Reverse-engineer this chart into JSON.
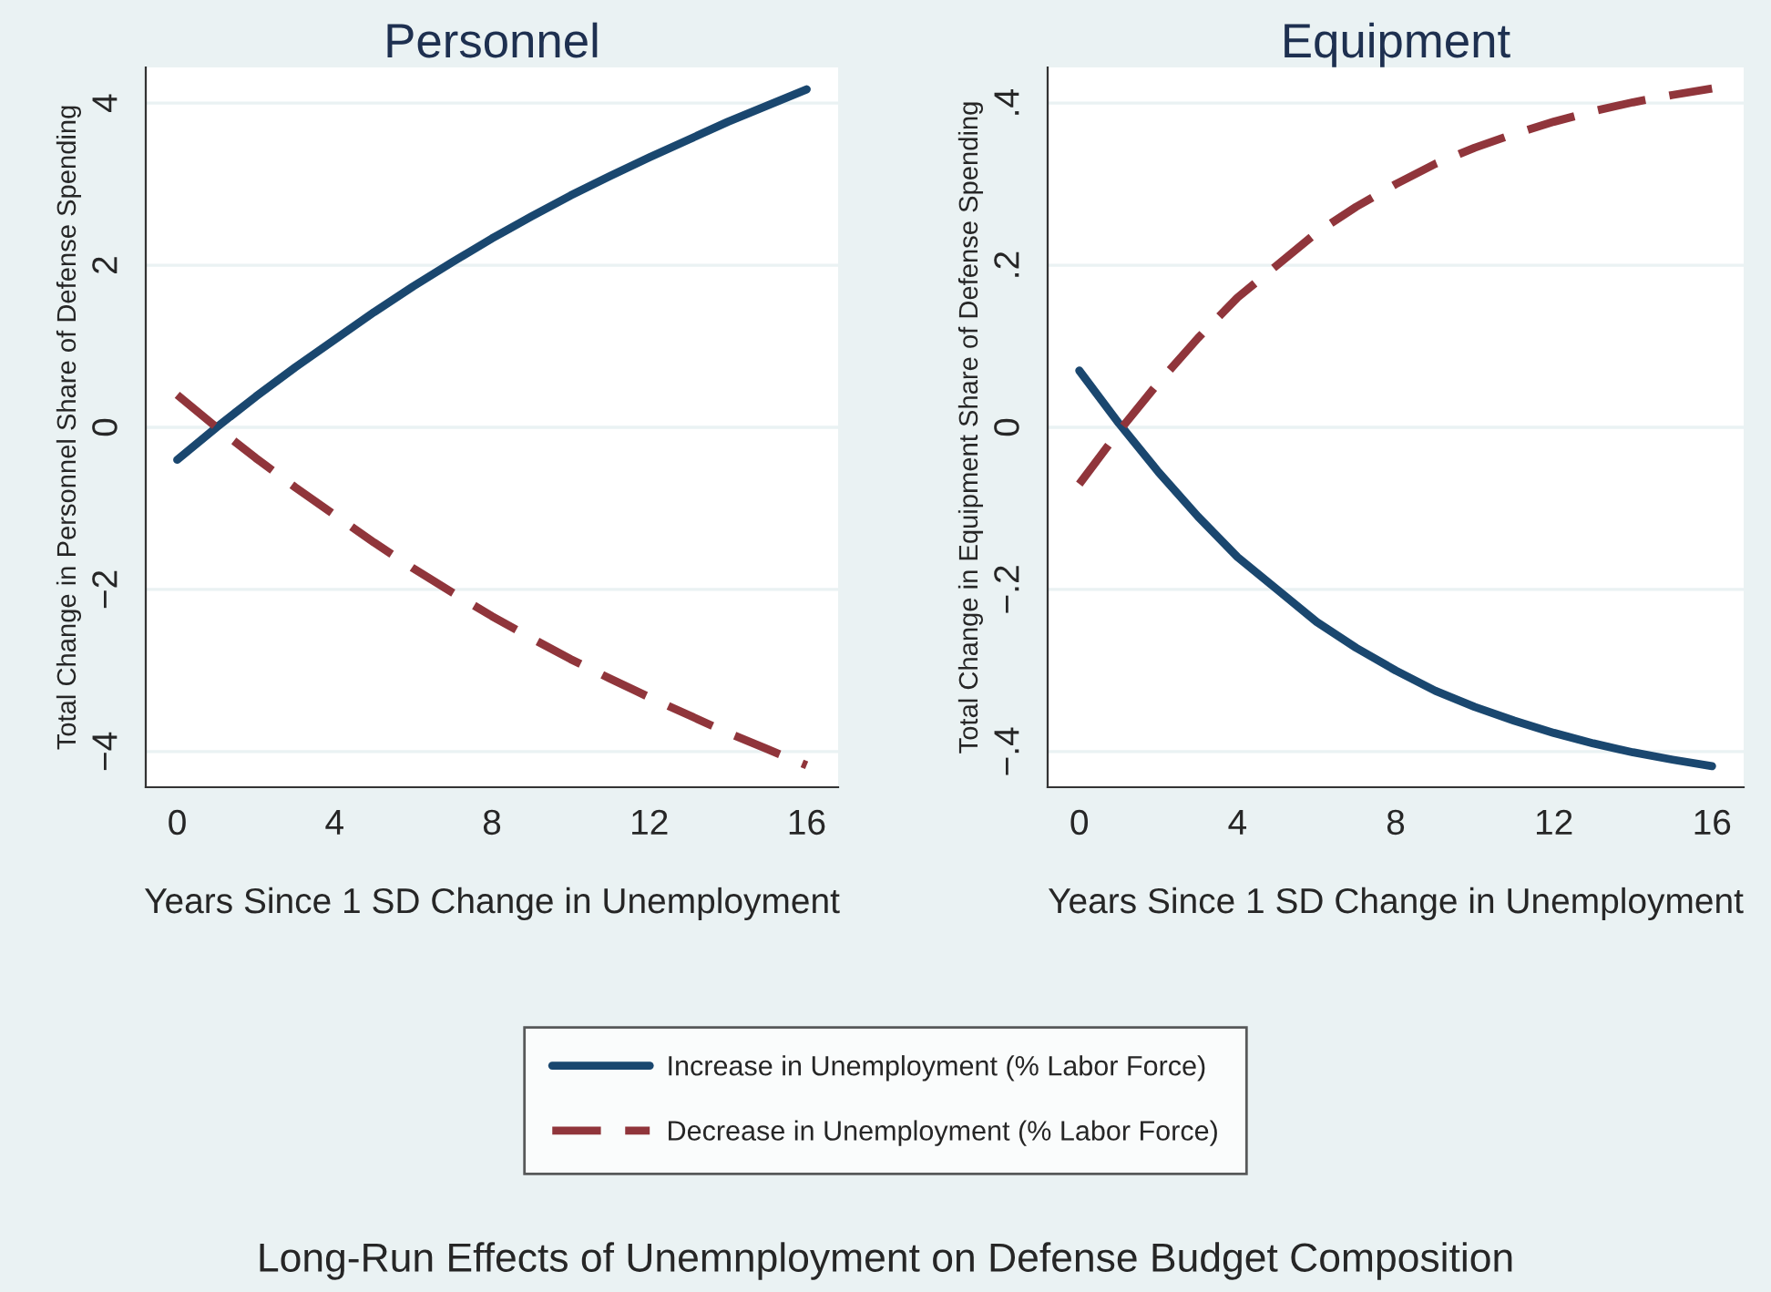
{
  "chart_data": [
    {
      "type": "line",
      "title": "Personnel",
      "xlabel": "Years Since 1 SD Change in Unemployment",
      "ylabel": "Total Change in Personnel Share of Defense Spending",
      "x": [
        0,
        1,
        2,
        3,
        4,
        5,
        6,
        7,
        8,
        9,
        10,
        11,
        12,
        13,
        14,
        15,
        16
      ],
      "series": [
        {
          "name": "Increase in Unemployment (% Labor Force)",
          "color": "#1a476f",
          "line_style": "solid",
          "values": [
            -0.4,
            0.0,
            0.38,
            0.74,
            1.08,
            1.42,
            1.74,
            2.04,
            2.33,
            2.6,
            2.86,
            3.1,
            3.33,
            3.55,
            3.77,
            3.97,
            4.17
          ]
        },
        {
          "name": "Decrease in Unemployment (% Labor Force)",
          "color": "#90353b",
          "line_style": "dashed",
          "values": [
            0.4,
            0.0,
            -0.38,
            -0.74,
            -1.08,
            -1.42,
            -1.74,
            -2.04,
            -2.33,
            -2.6,
            -2.86,
            -3.1,
            -3.33,
            -3.55,
            -3.77,
            -3.97,
            -4.17
          ]
        }
      ],
      "xlim": [
        -0.8,
        16.8
      ],
      "xticks": [
        0,
        4,
        8,
        12,
        16
      ],
      "ylim": [
        -4.44,
        4.44
      ],
      "yticks": [
        {
          "value": -4,
          "label": "−4"
        },
        {
          "value": -2,
          "label": "−2"
        },
        0,
        2,
        4
      ],
      "grid": "y",
      "legend": "bottom"
    },
    {
      "type": "line",
      "title": "Equipment",
      "xlabel": "Years Since 1 SD Change in Unemployment",
      "ylabel": "Total Change in Equipment Share of Defense Spending",
      "x": [
        0,
        1,
        2,
        3,
        4,
        5,
        6,
        7,
        8,
        9,
        10,
        11,
        12,
        13,
        14,
        15,
        16
      ],
      "series": [
        {
          "name": "Increase in Unemployment (% Labor Force)",
          "color": "#1a476f",
          "line_style": "solid",
          "values": [
            0.07,
            0.005,
            -0.055,
            -0.11,
            -0.16,
            -0.2,
            -0.24,
            -0.272,
            -0.3,
            -0.325,
            -0.345,
            -0.362,
            -0.377,
            -0.39,
            -0.401,
            -0.41,
            -0.418
          ]
        },
        {
          "name": "Decrease in Unemployment (% Labor Force)",
          "color": "#90353b",
          "line_style": "dashed",
          "values": [
            -0.07,
            -0.005,
            0.055,
            0.11,
            0.16,
            0.2,
            0.24,
            0.272,
            0.3,
            0.325,
            0.345,
            0.362,
            0.377,
            0.39,
            0.401,
            0.41,
            0.418
          ]
        }
      ],
      "xlim": [
        -0.8,
        16.8
      ],
      "xticks": [
        0,
        4,
        8,
        12,
        16
      ],
      "ylim": [
        -0.444,
        0.444
      ],
      "yticks": [
        {
          "value": -0.4,
          "label": "−.4"
        },
        {
          "value": -0.2,
          "label": "−.2"
        },
        {
          "value": 0,
          "label": "0"
        },
        {
          "value": 0.2,
          "label": ".2"
        },
        {
          "value": 0.4,
          "label": ".4"
        }
      ],
      "grid": "y",
      "legend": "bottom",
      "annotations": [
        "Long-Run Effects of Unemnployment on Defense Budget Composition"
      ]
    }
  ]
}
